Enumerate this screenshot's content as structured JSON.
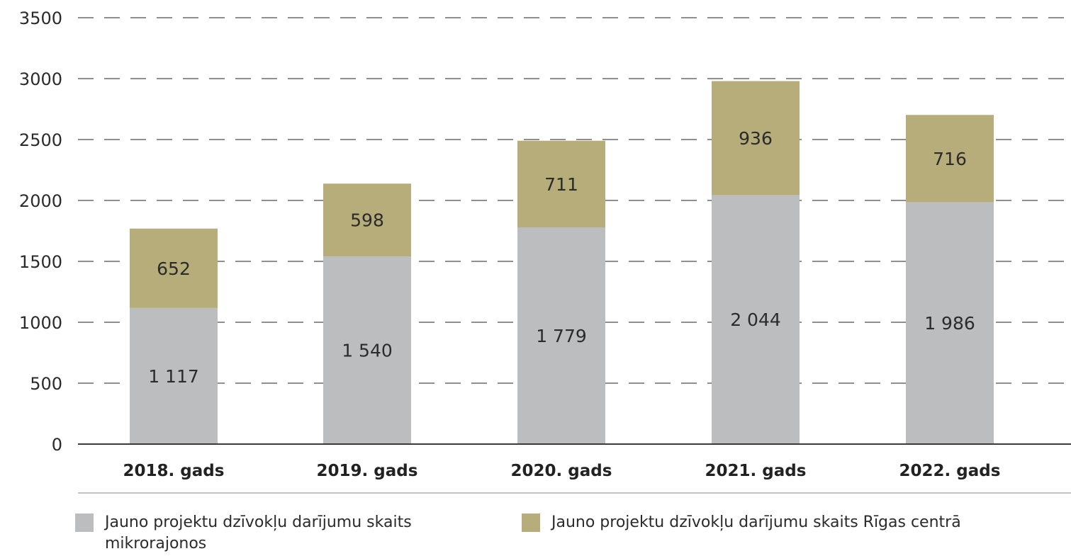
{
  "chart_data": {
    "type": "bar",
    "stacked": true,
    "categories": [
      "2018. gads",
      "2019. gads",
      "2020. gads",
      "2021. gads",
      "2022. gads"
    ],
    "series": [
      {
        "name": "Jauno projektu dzīvokļu darījumu skaits mikrorajonos",
        "values": [
          1117,
          1540,
          1779,
          2044,
          1986
        ],
        "labels": [
          "1 117",
          "1 540",
          "1 779",
          "2 044",
          "1 986"
        ],
        "color": "#bcbdbf"
      },
      {
        "name": "Jauno projektu dzīvokļu darījumu skaits Rīgas centrā",
        "values": [
          652,
          598,
          711,
          936,
          716
        ],
        "labels": [
          "652",
          "598",
          "711",
          "936",
          "716"
        ],
        "color": "#b7ad7a"
      }
    ],
    "ylim": [
      0,
      3500
    ],
    "yticks": [
      "0",
      "500",
      "1000",
      "1500",
      "2000",
      "2500",
      "3000",
      "3500"
    ],
    "grid": true,
    "legend_position": "bottom"
  }
}
